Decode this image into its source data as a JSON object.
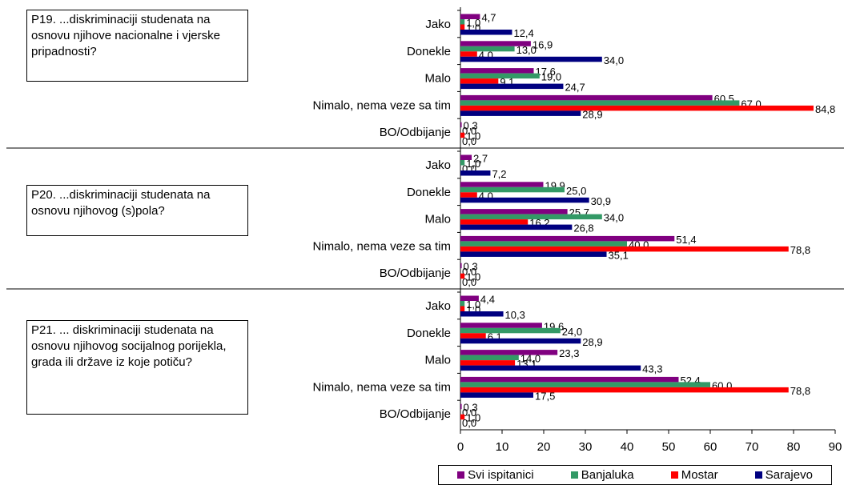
{
  "questions": [
    {
      "text": "P19. ...diskriminaciji studenata na osnovu njihove nacionalne i vjerske pripadnosti?"
    },
    {
      "text": "P20. ...diskriminaciji studenata na osnovu njihovog (s)pola?"
    },
    {
      "text": "P21. ... diskriminaciji studenata na osnovu njihovog socijalnog porijekla, grada ili države iz koje potiču?"
    }
  ],
  "colors": {
    "Svi ispitanici": "#800080",
    "Banjaluka": "#339966",
    "Mostar": "#ff0000",
    "Sarajevo": "#000080"
  },
  "chart_data": {
    "type": "bar",
    "orientation": "horizontal",
    "categories": [
      "Jako",
      "Donekle",
      "Malo",
      "Nimalo, nema veze sa tim",
      "BO/Odbijanje"
    ],
    "series_names": [
      "Svi ispitanici",
      "Banjaluka",
      "Mostar",
      "Sarajevo"
    ],
    "groups": [
      {
        "question": "P19",
        "values": [
          [
            4.7,
            16.9,
            17.6,
            60.5,
            0.3
          ],
          [
            1.0,
            13.0,
            19.0,
            67.0,
            0.0
          ],
          [
            1.0,
            4.0,
            9.1,
            84.8,
            1.0
          ],
          [
            12.4,
            34.0,
            24.7,
            28.9,
            0.0
          ]
        ]
      },
      {
        "question": "P20",
        "values": [
          [
            2.7,
            19.9,
            25.7,
            51.4,
            0.3
          ],
          [
            1.0,
            25.0,
            34.0,
            40.0,
            0.0
          ],
          [
            0.0,
            4.0,
            16.2,
            78.8,
            1.0
          ],
          [
            7.2,
            30.9,
            26.8,
            35.1,
            0.0
          ]
        ]
      },
      {
        "question": "P21",
        "values": [
          [
            4.4,
            19.6,
            23.3,
            52.4,
            0.3
          ],
          [
            1.0,
            24.0,
            14.0,
            60.0,
            0.0
          ],
          [
            1.0,
            6.1,
            13.1,
            78.8,
            1.0
          ],
          [
            10.3,
            28.9,
            43.3,
            17.5,
            0.0
          ]
        ]
      }
    ],
    "value_labels": [
      [
        [
          "4,7",
          "16,9",
          "17,6",
          "60,5",
          "0,3"
        ],
        [
          "1,0",
          "13,0",
          "19,0",
          "67,0",
          "0,0"
        ],
        [
          "1,0",
          "4,0",
          "9,1",
          "84,8",
          "1,0"
        ],
        [
          "12,4",
          "34,0",
          "24,7",
          "28,9",
          "0,0"
        ]
      ],
      [
        [
          "2,7",
          "19,9",
          "25,7",
          "51,4",
          "0,3"
        ],
        [
          "1,0",
          "25,0",
          "34,0",
          "40,0",
          "0,0"
        ],
        [
          "0,0",
          "4,0",
          "16,2",
          "78,8",
          "1,0"
        ],
        [
          "7,2",
          "30,9",
          "26,8",
          "35,1",
          "0,0"
        ]
      ],
      [
        [
          "4,4",
          "19,6",
          "23,3",
          "52,4",
          "0,3"
        ],
        [
          "1,0",
          "24,0",
          "14,0",
          "60,0",
          "0,0"
        ],
        [
          "1,0",
          "6,1",
          "13,1",
          "78,8",
          "1,0"
        ],
        [
          "10,3",
          "28,9",
          "43,3",
          "17,5",
          "0,0"
        ]
      ]
    ],
    "x_ticks": [
      0,
      10,
      20,
      30,
      40,
      50,
      60,
      70,
      80,
      90
    ],
    "xlim": [
      0,
      90
    ],
    "grid": false,
    "legend_position": "bottom"
  }
}
